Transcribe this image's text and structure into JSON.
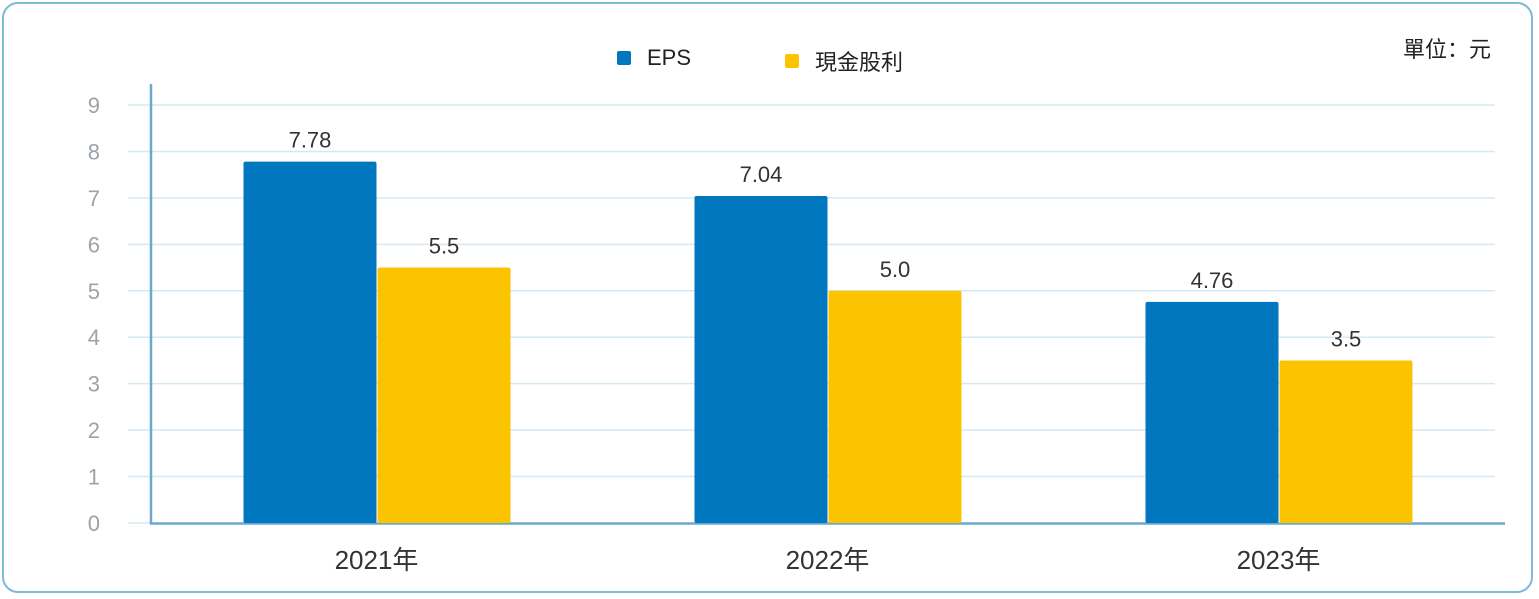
{
  "unit_label": "單位：元",
  "colors": {
    "eps": "#0077be",
    "dividend": "#fcc300",
    "axis": "#6aa8cc",
    "grid": "#d6e8f3",
    "tick": "#9aa3aa",
    "text": "#333333"
  },
  "chart_data": {
    "type": "bar",
    "categories": [
      "2021年",
      "2022年",
      "2023年"
    ],
    "series": [
      {
        "name": "EPS",
        "values": [
          7.78,
          7.04,
          4.76
        ],
        "labels": [
          "7.78",
          "7.04",
          "4.76"
        ]
      },
      {
        "name": "現金股利",
        "values": [
          5.5,
          5.0,
          3.5
        ],
        "labels": [
          "5.5",
          "5.0",
          "3.5"
        ]
      }
    ],
    "yticks": [
      "0",
      "1",
      "2",
      "3",
      "4",
      "5",
      "6",
      "7",
      "8",
      "9"
    ],
    "ylim": [
      0,
      9
    ],
    "grid": true,
    "legend_position": "top-center"
  }
}
